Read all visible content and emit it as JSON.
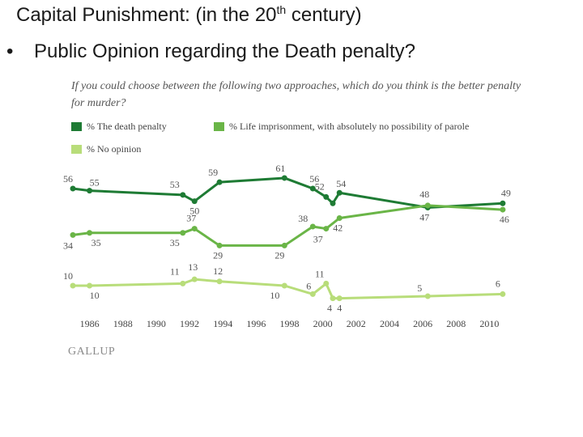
{
  "slide": {
    "title_pre": "Capital Punishment: (in the 20",
    "title_sup": "th",
    "title_post": " century)",
    "bullet": "•",
    "subtitle": "Public Opinion regarding the Death penalty?"
  },
  "chart_data": {
    "type": "line",
    "title": "If you could choose between the following two approaches, which do you think is the better penalty for murder?",
    "source": "GALLUP",
    "xlim": [
      1985,
      2011
    ],
    "ylim": [
      0,
      70
    ],
    "x_ticks": [
      "1986",
      "1988",
      "1990",
      "1992",
      "1994",
      "1996",
      "1998",
      "2000",
      "2002",
      "2004",
      "2006",
      "2008",
      "2010"
    ],
    "legend_position": "top",
    "series": [
      {
        "name": "% The death penalty",
        "color": "#1e7b34",
        "points": [
          {
            "x": 1985.0,
            "y": 56,
            "label": "56"
          },
          {
            "x": 1986.0,
            "y": 55,
            "label": "55"
          },
          {
            "x": 1991.6,
            "y": 53,
            "label": "53"
          },
          {
            "x": 1992.3,
            "y": 50,
            "label": "50"
          },
          {
            "x": 1993.8,
            "y": 59,
            "label": "59"
          },
          {
            "x": 1997.7,
            "y": 61,
            "label": "61"
          },
          {
            "x": 1999.4,
            "y": 56,
            "label": "56"
          },
          {
            "x": 2000.2,
            "y": 52,
            "label": "52"
          },
          {
            "x": 2000.6,
            "y": 49,
            "label": ""
          },
          {
            "x": 2001.0,
            "y": 54,
            "label": "54"
          },
          {
            "x": 2006.3,
            "y": 47,
            "label": "47"
          },
          {
            "x": 2010.8,
            "y": 49,
            "label": "49"
          }
        ]
      },
      {
        "name": "% Life imprisonment, with absolutely no possibility of parole",
        "color": "#6ab547",
        "points": [
          {
            "x": 1985.0,
            "y": 34,
            "label": "34"
          },
          {
            "x": 1986.0,
            "y": 35,
            "label": "35"
          },
          {
            "x": 1991.6,
            "y": 35,
            "label": "35"
          },
          {
            "x": 1992.3,
            "y": 37,
            "label": "37"
          },
          {
            "x": 1993.8,
            "y": 29,
            "label": "29"
          },
          {
            "x": 1997.7,
            "y": 29,
            "label": "29"
          },
          {
            "x": 1999.4,
            "y": 38,
            "label": "38"
          },
          {
            "x": 2000.2,
            "y": 37,
            "label": "37"
          },
          {
            "x": 2001.0,
            "y": 42,
            "label": "42"
          },
          {
            "x": 2006.3,
            "y": 48,
            "label": "48"
          },
          {
            "x": 2010.8,
            "y": 46,
            "label": "46"
          }
        ]
      },
      {
        "name": "% No opinion",
        "color": "#b8dd7a",
        "points": [
          {
            "x": 1985.0,
            "y": 10,
            "label": "10"
          },
          {
            "x": 1986.0,
            "y": 10,
            "label": "10"
          },
          {
            "x": 1991.6,
            "y": 11,
            "label": "11"
          },
          {
            "x": 1992.3,
            "y": 13,
            "label": "13"
          },
          {
            "x": 1993.8,
            "y": 12,
            "label": "12"
          },
          {
            "x": 1997.7,
            "y": 10,
            "label": "10"
          },
          {
            "x": 1999.4,
            "y": 6,
            "label": "6"
          },
          {
            "x": 2000.2,
            "y": 11,
            "label": "11"
          },
          {
            "x": 2000.6,
            "y": 4,
            "label": "4"
          },
          {
            "x": 2001.0,
            "y": 4,
            "label": "4"
          },
          {
            "x": 2006.3,
            "y": 5,
            "label": "5"
          },
          {
            "x": 2010.8,
            "y": 6,
            "label": "6"
          }
        ]
      }
    ]
  }
}
